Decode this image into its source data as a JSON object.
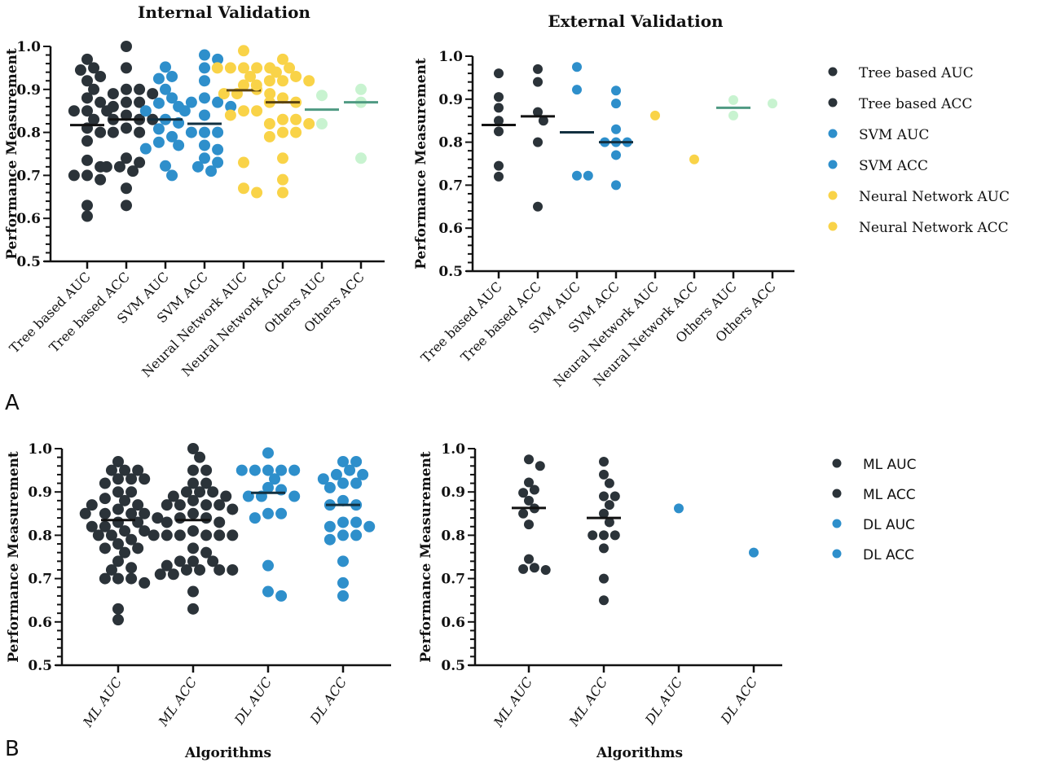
{
  "panels": {
    "A": "A",
    "B": "B"
  },
  "chart_data": [
    {
      "id": "A-internal",
      "type": "scatter",
      "subtype": "dot-plot-with-mean",
      "title": "Internal Validation",
      "xlabel": "",
      "ylabel": "Performance Measurement",
      "ylim": [
        0.5,
        1.0
      ],
      "yticks": [
        "0.5",
        "0.6",
        "0.7",
        "0.8",
        "0.9",
        "1.0"
      ],
      "grid": false,
      "categories": [
        "Tree based AUC",
        "Tree based ACC",
        "SVM AUC",
        "SVM ACC",
        "Neural Network AUC",
        "Neural Network ACC",
        "Others AUC",
        "Others ACC"
      ],
      "series": [
        {
          "name": "Tree based AUC",
          "color": "#2b3339",
          "mean_color": "#111111",
          "mean": 0.817,
          "values": [
            0.97,
            0.95,
            0.945,
            0.93,
            0.92,
            0.9,
            0.88,
            0.87,
            0.85,
            0.85,
            0.85,
            0.83,
            0.81,
            0.8,
            0.78,
            0.735,
            0.72,
            0.7,
            0.7,
            0.69,
            0.63,
            0.605
          ]
        },
        {
          "name": "Tree based ACC",
          "color": "#2b3339",
          "mean_color": "#111111",
          "mean": 0.83,
          "values": [
            1.0,
            0.95,
            0.9,
            0.9,
            0.89,
            0.89,
            0.87,
            0.87,
            0.86,
            0.84,
            0.83,
            0.83,
            0.83,
            0.81,
            0.8,
            0.8,
            0.74,
            0.73,
            0.72,
            0.72,
            0.71,
            0.67,
            0.63
          ]
        },
        {
          "name": "SVM AUC",
          "color": "#2e8fcb",
          "mean_color": "#123040",
          "mean": 0.83,
          "values": [
            0.952,
            0.93,
            0.925,
            0.9,
            0.88,
            0.868,
            0.86,
            0.85,
            0.83,
            0.822,
            0.808,
            0.79,
            0.777,
            0.77,
            0.762,
            0.722,
            0.7
          ]
        },
        {
          "name": "SVM ACC",
          "color": "#2e8fcb",
          "mean_color": "#123040",
          "mean": 0.82,
          "values": [
            0.98,
            0.97,
            0.95,
            0.92,
            0.88,
            0.87,
            0.87,
            0.86,
            0.84,
            0.85,
            0.8,
            0.8,
            0.8,
            0.77,
            0.76,
            0.74,
            0.73,
            0.72,
            0.71
          ]
        },
        {
          "name": "Neural Network AUC",
          "color": "#f9d348",
          "mean_color": "#5a4210",
          "mean": 0.898,
          "values": [
            0.99,
            0.95,
            0.95,
            0.95,
            0.95,
            0.95,
            0.93,
            0.91,
            0.9,
            0.89,
            0.89,
            0.89,
            0.85,
            0.85,
            0.84,
            0.73,
            0.67,
            0.66
          ]
        },
        {
          "name": "Neural Network ACC",
          "color": "#f9d348",
          "mean_color": "#5a4210",
          "mean": 0.87,
          "values": [
            0.97,
            0.95,
            0.94,
            0.93,
            0.92,
            0.92,
            0.92,
            0.91,
            0.88,
            0.87,
            0.87,
            0.83,
            0.83,
            0.82,
            0.82,
            0.8,
            0.8,
            0.79,
            0.74,
            0.69,
            0.66
          ]
        },
        {
          "name": "Others AUC",
          "color": "#c8f3d0",
          "mean_color": "#4f9a82",
          "mean": 0.853,
          "values": [
            0.886,
            0.82
          ]
        },
        {
          "name": "Others ACC",
          "color": "#c8f3d0",
          "mean_color": "#4f9a82",
          "mean": 0.87,
          "values": [
            0.9,
            0.87,
            0.74
          ]
        }
      ]
    },
    {
      "id": "A-external",
      "type": "scatter",
      "subtype": "dot-plot-with-mean",
      "title": "External Validation",
      "xlabel": "",
      "ylabel": "Performance Measurement",
      "ylim": [
        0.5,
        1.0
      ],
      "yticks": [
        "0.5",
        "0.6",
        "0.7",
        "0.8",
        "0.9",
        "1.0"
      ],
      "grid": false,
      "categories": [
        "Tree based AUC",
        "Tree based ACC",
        "SVM AUC",
        "SVM ACC",
        "Neural Network AUC",
        "Neural Network ACC",
        "Others AUC",
        "Others ACC"
      ],
      "series": [
        {
          "name": "Tree based AUC",
          "color": "#2b3339",
          "mean_color": "#111111",
          "mean": 0.84,
          "values": [
            0.96,
            0.905,
            0.88,
            0.85,
            0.825,
            0.745,
            0.72
          ]
        },
        {
          "name": "Tree based ACC",
          "color": "#2b3339",
          "mean_color": "#111111",
          "mean": 0.86,
          "values": [
            0.97,
            0.94,
            0.87,
            0.85,
            0.8,
            0.65
          ]
        },
        {
          "name": "SVM AUC",
          "color": "#2e8fcb",
          "mean_color": "#123040",
          "mean": 0.823,
          "values": [
            0.975,
            0.922,
            0.722,
            0.722
          ]
        },
        {
          "name": "SVM ACC",
          "color": "#2e8fcb",
          "mean_color": "#123040",
          "mean": 0.8,
          "values": [
            0.92,
            0.89,
            0.83,
            0.8,
            0.8,
            0.8,
            0.77,
            0.7
          ]
        },
        {
          "name": "Neural Network AUC",
          "color": "#f9d348",
          "mean_color": "#5a4210",
          "mean": null,
          "values": [
            0.862
          ]
        },
        {
          "name": "Neural Network ACC",
          "color": "#f9d348",
          "mean_color": "#5a4210",
          "mean": null,
          "values": [
            0.76
          ]
        },
        {
          "name": "Others AUC",
          "color": "#c8f3d0",
          "mean_color": "#4f9a82",
          "mean": 0.88,
          "values": [
            0.898,
            0.862
          ]
        },
        {
          "name": "Others ACC",
          "color": "#c8f3d0",
          "mean_color": "#4f9a82",
          "mean": null,
          "values": [
            0.89
          ]
        }
      ],
      "legend": {
        "position": "right",
        "items": [
          {
            "label": "Tree based AUC",
            "color": "#2b3339"
          },
          {
            "label": "Tree based ACC",
            "color": "#2b3339"
          },
          {
            "label": "SVM AUC",
            "color": "#2e8fcb"
          },
          {
            "label": "SVM ACC",
            "color": "#2e8fcb"
          },
          {
            "label": "Neural Network AUC",
            "color": "#f9d348"
          },
          {
            "label": "Neural Network ACC",
            "color": "#f9d348"
          }
        ]
      }
    },
    {
      "id": "B-internal",
      "type": "scatter",
      "subtype": "dot-plot-with-mean",
      "title": "",
      "xlabel": "Algorithms",
      "ylabel": "Performance Measurement",
      "ylim": [
        0.5,
        1.0
      ],
      "yticks": [
        "0.5",
        "0.6",
        "0.7",
        "0.8",
        "0.9",
        "1.0"
      ],
      "grid": false,
      "categories": [
        "ML AUC",
        "ML ACC",
        "DL AUC",
        "DL ACC"
      ],
      "series": [
        {
          "name": "ML AUC",
          "color": "#2b3339",
          "mean_color": "#111111",
          "mean": 0.835,
          "values": [
            0.97,
            0.95,
            0.95,
            0.95,
            0.93,
            0.93,
            0.92,
            0.93,
            0.9,
            0.9,
            0.885,
            0.88,
            0.87,
            0.87,
            0.86,
            0.85,
            0.85,
            0.85,
            0.85,
            0.84,
            0.83,
            0.83,
            0.82,
            0.82,
            0.81,
            0.81,
            0.8,
            0.8,
            0.79,
            0.78,
            0.77,
            0.77,
            0.76,
            0.74,
            0.725,
            0.72,
            0.7,
            0.7,
            0.7,
            0.69,
            0.63,
            0.605
          ]
        },
        {
          "name": "ML ACC",
          "color": "#2b3339",
          "mean_color": "#111111",
          "mean": 0.835,
          "values": [
            1.0,
            0.98,
            0.95,
            0.95,
            0.92,
            0.92,
            0.9,
            0.9,
            0.9,
            0.89,
            0.89,
            0.88,
            0.87,
            0.87,
            0.87,
            0.87,
            0.86,
            0.85,
            0.84,
            0.84,
            0.83,
            0.83,
            0.81,
            0.8,
            0.8,
            0.8,
            0.8,
            0.8,
            0.8,
            0.77,
            0.76,
            0.74,
            0.74,
            0.74,
            0.73,
            0.72,
            0.72,
            0.72,
            0.72,
            0.71,
            0.71,
            0.67,
            0.63
          ]
        },
        {
          "name": "DL AUC",
          "color": "#2e8fcb",
          "mean_color": "#123040",
          "mean": 0.898,
          "values": [
            0.99,
            0.95,
            0.95,
            0.95,
            0.95,
            0.95,
            0.93,
            0.91,
            0.905,
            0.89,
            0.89,
            0.89,
            0.85,
            0.85,
            0.84,
            0.73,
            0.67,
            0.66
          ]
        },
        {
          "name": "DL ACC",
          "color": "#2e8fcb",
          "mean_color": "#123040",
          "mean": 0.87,
          "values": [
            0.97,
            0.97,
            0.95,
            0.94,
            0.94,
            0.93,
            0.92,
            0.92,
            0.91,
            0.88,
            0.87,
            0.87,
            0.83,
            0.83,
            0.82,
            0.82,
            0.8,
            0.8,
            0.79,
            0.74,
            0.69,
            0.66
          ]
        }
      ]
    },
    {
      "id": "B-external",
      "type": "scatter",
      "subtype": "dot-plot-with-mean",
      "title": "",
      "xlabel": "Algorithms",
      "ylabel": "Performance Measurement",
      "ylim": [
        0.5,
        1.0
      ],
      "yticks": [
        "0.5",
        "0.6",
        "0.7",
        "0.8",
        "0.9",
        "1.0"
      ],
      "grid": false,
      "categories": [
        "ML AUC",
        "ML ACC",
        "DL AUC",
        "DL ACC"
      ],
      "series": [
        {
          "name": "ML AUC",
          "color": "#2b3339",
          "mean_color": "#111111",
          "mean": 0.863,
          "values": [
            0.975,
            0.96,
            0.922,
            0.905,
            0.898,
            0.88,
            0.862,
            0.85,
            0.825,
            0.745,
            0.725,
            0.722,
            0.72
          ]
        },
        {
          "name": "ML ACC",
          "color": "#2b3339",
          "mean_color": "#111111",
          "mean": 0.84,
          "values": [
            0.97,
            0.94,
            0.92,
            0.89,
            0.89,
            0.87,
            0.85,
            0.83,
            0.8,
            0.8,
            0.8,
            0.77,
            0.7,
            0.65
          ]
        },
        {
          "name": "DL AUC",
          "color": "#2e8fcb",
          "mean_color": "#123040",
          "mean": null,
          "values": [
            0.862
          ]
        },
        {
          "name": "DL ACC",
          "color": "#2e8fcb",
          "mean_color": "#123040",
          "mean": null,
          "values": [
            0.76
          ]
        }
      ],
      "legend": {
        "position": "right",
        "items": [
          {
            "label": "ML AUC",
            "color": "#2b3339"
          },
          {
            "label": "ML ACC",
            "color": "#2b3339"
          },
          {
            "label": "DL AUC",
            "color": "#2e8fcb"
          },
          {
            "label": "DL ACC",
            "color": "#2e8fcb"
          }
        ]
      }
    }
  ]
}
